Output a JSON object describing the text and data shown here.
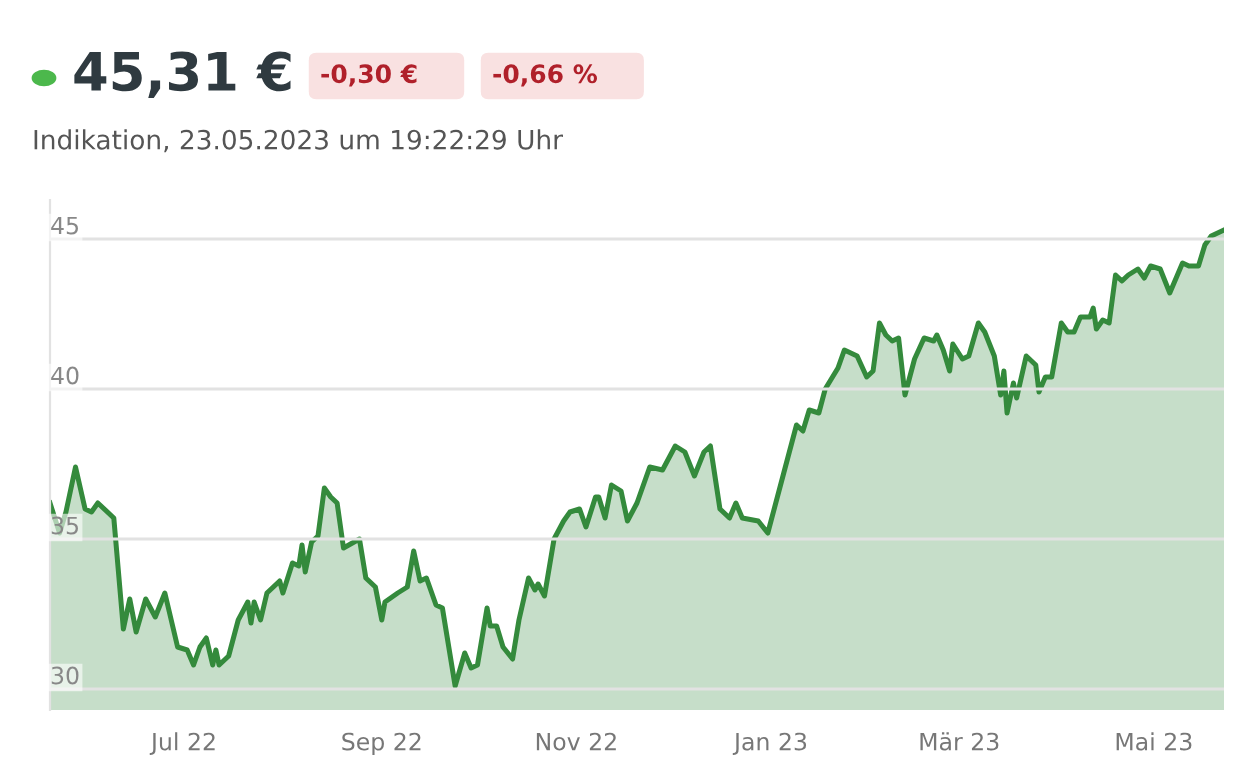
{
  "chart_data": {
    "type": "area",
    "title": "45,31 €",
    "subtitle": "Indikation, 23.05.2023 um 19:22:29 Uhr",
    "annotations": [
      "-0,30 €",
      "-0,66 %"
    ],
    "x": [
      "2022-05-20",
      "2022-05-23",
      "2022-05-25",
      "2022-05-28",
      "2022-05-31",
      "2022-06-02",
      "2022-06-04",
      "2022-06-09",
      "2022-06-12",
      "2022-06-14",
      "2022-06-16",
      "2022-06-19",
      "2022-06-22",
      "2022-06-25",
      "2022-06-29",
      "2022-07-02",
      "2022-07-04",
      "2022-07-06",
      "2022-07-08",
      "2022-07-10",
      "2022-07-11",
      "2022-07-12",
      "2022-07-15",
      "2022-07-18",
      "2022-07-21",
      "2022-07-22",
      "2022-07-23",
      "2022-07-25",
      "2022-07-27",
      "2022-07-31",
      "2022-08-01",
      "2022-08-04",
      "2022-08-06",
      "2022-08-07",
      "2022-08-08",
      "2022-08-10",
      "2022-08-12",
      "2022-08-14",
      "2022-08-16",
      "2022-08-18",
      "2022-08-20",
      "2022-08-25",
      "2022-08-27",
      "2022-08-30",
      "2022-09-01",
      "2022-09-02",
      "2022-09-06",
      "2022-09-09",
      "2022-09-11",
      "2022-09-13",
      "2022-09-15",
      "2022-09-18",
      "2022-09-20",
      "2022-09-24",
      "2022-09-27",
      "2022-09-29",
      "2022-10-01",
      "2022-10-04",
      "2022-10-05",
      "2022-10-07",
      "2022-10-09",
      "2022-10-12",
      "2022-10-14",
      "2022-10-17",
      "2022-10-19",
      "2022-10-20",
      "2022-10-22",
      "2022-10-25",
      "2022-10-28",
      "2022-10-30",
      "2022-11-02",
      "2022-11-04",
      "2022-11-07",
      "2022-11-08",
      "2022-11-10",
      "2022-11-12",
      "2022-11-15",
      "2022-11-17",
      "2022-11-20",
      "2022-11-24",
      "2022-11-28",
      "2022-12-02",
      "2022-12-05",
      "2022-12-08",
      "2022-12-11",
      "2022-12-13",
      "2022-12-16",
      "2022-12-19",
      "2022-12-21",
      "2022-12-23",
      "2022-12-28",
      "2022-12-31",
      "2023-01-05",
      "2023-01-09",
      "2023-01-11",
      "2023-01-13",
      "2023-01-16",
      "2023-01-18",
      "2023-01-22",
      "2023-01-24",
      "2023-01-28",
      "2023-01-31",
      "2023-02-02",
      "2023-02-04",
      "2023-02-06",
      "2023-02-08",
      "2023-02-10",
      "2023-02-12",
      "2023-02-15",
      "2023-02-18",
      "2023-02-21",
      "2023-02-22",
      "2023-02-24",
      "2023-02-26",
      "2023-02-27",
      "2023-03-02",
      "2023-03-04",
      "2023-03-07",
      "2023-03-09",
      "2023-03-12",
      "2023-03-14",
      "2023-03-15",
      "2023-03-16",
      "2023-03-18",
      "2023-03-19",
      "2023-03-22",
      "2023-03-25",
      "2023-03-26",
      "2023-03-28",
      "2023-03-30",
      "2023-04-02",
      "2023-04-04",
      "2023-04-06",
      "2023-04-08",
      "2023-04-11",
      "2023-04-12",
      "2023-04-13",
      "2023-04-15",
      "2023-04-17",
      "2023-04-19",
      "2023-04-21",
      "2023-04-23",
      "2023-04-26",
      "2023-04-28",
      "2023-04-30",
      "2023-05-03",
      "2023-05-06",
      "2023-05-10",
      "2023-05-12",
      "2023-05-15",
      "2023-05-17",
      "2023-05-19",
      "2023-05-23"
    ],
    "series": [
      {
        "color": "#348a3c",
        "values": [
          36.2,
          35.2,
          35.9,
          37.4,
          36.0,
          35.9,
          36.2,
          35.7,
          32.0,
          33.0,
          31.9,
          33.0,
          32.4,
          33.2,
          31.4,
          31.3,
          30.8,
          31.4,
          31.7,
          30.8,
          31.3,
          30.8,
          31.1,
          32.3,
          32.9,
          32.2,
          32.9,
          32.3,
          33.2,
          33.6,
          33.2,
          34.2,
          34.1,
          34.8,
          33.9,
          34.9,
          35.1,
          36.7,
          36.4,
          36.2,
          34.7,
          35.0,
          33.7,
          33.4,
          32.3,
          32.9,
          33.2,
          33.4,
          34.6,
          33.6,
          33.7,
          32.8,
          32.7,
          30.1,
          31.2,
          30.7,
          30.8,
          32.7,
          32.1,
          32.1,
          31.4,
          31.0,
          32.3,
          33.7,
          33.3,
          33.5,
          33.1,
          35.0,
          35.6,
          35.9,
          36.0,
          35.4,
          36.4,
          36.4,
          35.7,
          36.8,
          36.6,
          35.6,
          36.2,
          37.4,
          37.3,
          38.1,
          37.9,
          37.1,
          37.9,
          38.1,
          36.0,
          35.7,
          36.2,
          35.7,
          35.6,
          35.2,
          37.2,
          38.8,
          38.6,
          39.3,
          39.2,
          40.0,
          40.7,
          41.3,
          41.1,
          40.4,
          40.6,
          42.2,
          41.8,
          41.6,
          41.7,
          39.8,
          41.0,
          41.7,
          41.6,
          41.8,
          41.3,
          40.6,
          41.5,
          41.0,
          41.1,
          42.2,
          41.9,
          41.1,
          39.8,
          40.6,
          39.2,
          40.2,
          39.7,
          41.1,
          40.8,
          39.9,
          40.4,
          40.4,
          42.2,
          41.9,
          41.9,
          42.4,
          42.4,
          42.7,
          42.0,
          42.3,
          42.2,
          43.8,
          43.6,
          43.8,
          44.0,
          43.7,
          44.1,
          44.0,
          43.2,
          44.2,
          44.1,
          44.1,
          44.8,
          45.1,
          45.3
        ]
      }
    ],
    "xlim": [
      "2022-05-20",
      "2023-05-23"
    ],
    "xticks": [
      {
        "value": "2022-07-01",
        "label": "Jul 22"
      },
      {
        "value": "2022-09-01",
        "label": "Sep 22"
      },
      {
        "value": "2022-11-01",
        "label": "Nov 22"
      },
      {
        "value": "2023-01-01",
        "label": "Jan 23"
      },
      {
        "value": "2023-03-01",
        "label": "Mär 23"
      },
      {
        "value": "2023-05-01",
        "label": "Mai 23"
      }
    ],
    "ylim": [
      29.3,
      46.3
    ],
    "yticks": [
      30,
      35,
      40,
      45
    ],
    "grid": "y",
    "legend": false,
    "marker": "none",
    "line_style": "solid"
  }
}
